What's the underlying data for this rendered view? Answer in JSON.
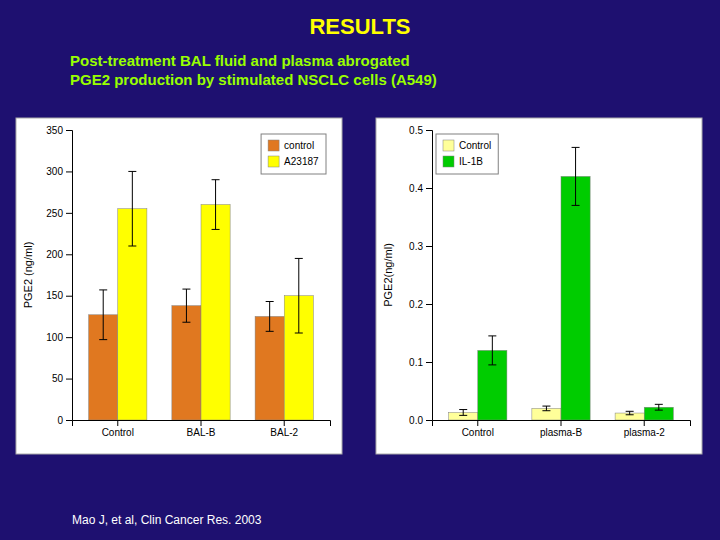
{
  "title": "RESULTS",
  "subtitle": "Post-treatment BAL fluid and plasma abrogated\nPGE2 production by stimulated NSCLC cells (A549)",
  "annotations": [
    "Mao J, et al,  Clin Cancer Res. 2003"
  ],
  "chart_data": [
    {
      "type": "bar",
      "categories": [
        "Control",
        "BAL-B",
        "BAL-2"
      ],
      "series": [
        {
          "name": "control",
          "color": "#e07820",
          "values": [
            127,
            138,
            125
          ],
          "errors": [
            30,
            20,
            18
          ]
        },
        {
          "name": "A23187",
          "color": "#ffff00",
          "values": [
            255,
            260,
            150
          ],
          "errors": [
            45,
            30,
            45
          ]
        }
      ],
      "ylabel": "PGE2 (ng/ml)",
      "ylim": [
        0,
        350
      ],
      "yticks": [
        0,
        50,
        100,
        150,
        200,
        250,
        300,
        350
      ],
      "legend": "upper right"
    },
    {
      "type": "bar",
      "categories": [
        "Control",
        "plasma-B",
        "plasma-2"
      ],
      "series": [
        {
          "name": "Control",
          "color": "#ffff99",
          "values": [
            0.013,
            0.02,
            0.012
          ],
          "errors": [
            0.005,
            0.004,
            0.003
          ]
        },
        {
          "name": "IL-1B",
          "color": "#00cc00",
          "values": [
            0.12,
            0.42,
            0.022
          ],
          "errors": [
            0.025,
            0.05,
            0.005
          ]
        }
      ],
      "ylabel": "PGE2(ng/ml)",
      "ylim": [
        0,
        0.5
      ],
      "yticks": [
        {
          "value": 0.0,
          "label": "0.0"
        },
        0.1,
        0.2,
        0.3,
        0.4,
        0.5
      ],
      "legend": "upper left"
    }
  ]
}
